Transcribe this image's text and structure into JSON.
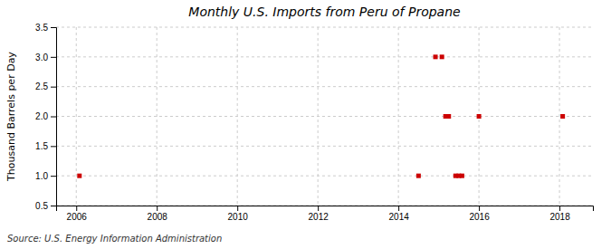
{
  "chart_data": {
    "type": "scatter",
    "title": "Monthly U.S. Imports from Peru of Propane",
    "ylabel": "Thousand Barrels per Day",
    "source": "Source: U.S. Energy Information Administration",
    "x": [
      2006.08,
      2014.5,
      2014.92,
      2015.08,
      2015.17,
      2015.25,
      2015.42,
      2015.5,
      2015.58,
      2016.0,
      2018.08
    ],
    "values": [
      1.0,
      1.0,
      3.0,
      3.0,
      2.0,
      2.0,
      1.0,
      1.0,
      1.0,
      2.0,
      2.0
    ],
    "color": "#cc0000",
    "marker": "square",
    "xlim": [
      2005.5,
      2018.83
    ],
    "xticks": [
      2006,
      2008,
      2010,
      2012,
      2014,
      2016,
      2018
    ],
    "ylim": [
      0.5,
      3.5
    ],
    "yticks": [
      0.5,
      {
        "value": 1.0,
        "label": "1.0"
      },
      1.5,
      {
        "value": 2.0,
        "label": "2.0"
      },
      2.5,
      {
        "value": 3.0,
        "label": "3.0"
      },
      3.5
    ],
    "grid": true
  }
}
